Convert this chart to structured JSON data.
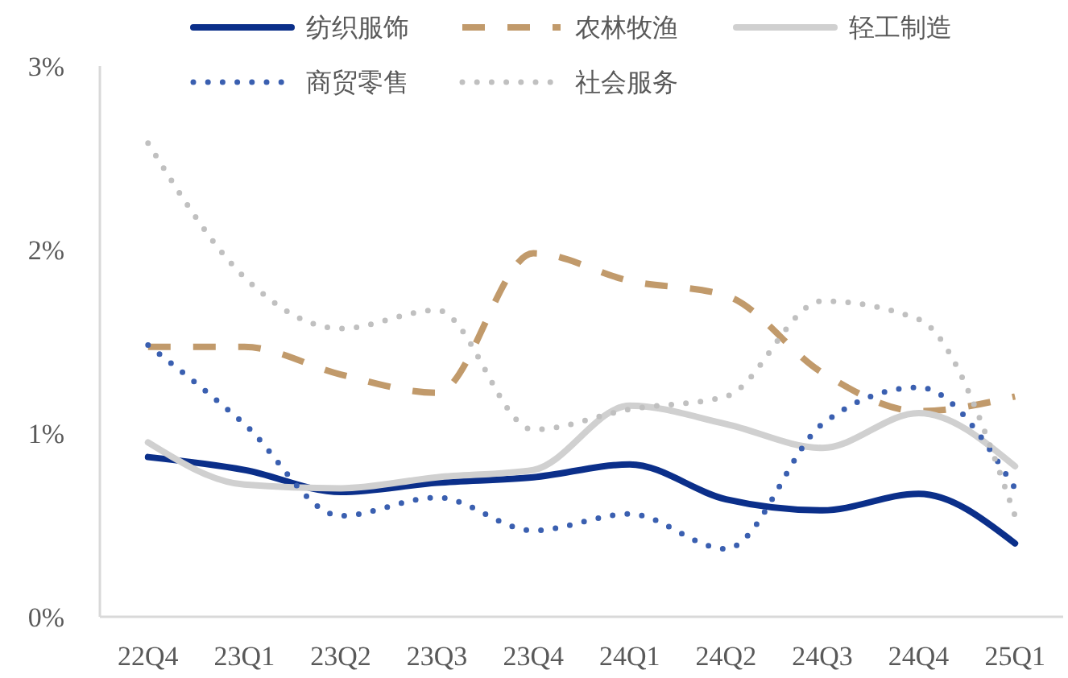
{
  "chart_data": {
    "type": "line",
    "categories": [
      "22Q4",
      "23Q1",
      "23Q2",
      "23Q3",
      "23Q4",
      "24Q1",
      "24Q2",
      "24Q3",
      "24Q4",
      "25Q1"
    ],
    "series": [
      {
        "name": "纺织服饰",
        "color": "#0b2f8a",
        "line_style": "solid",
        "values": [
          0.87,
          0.8,
          0.68,
          0.73,
          0.76,
          0.83,
          0.64,
          0.58,
          0.67,
          0.4
        ]
      },
      {
        "name": "农林牧渔",
        "color": "#c19a6b",
        "line_style": "dashed",
        "values": [
          1.47,
          1.47,
          1.32,
          1.22,
          1.98,
          1.83,
          1.75,
          1.33,
          1.12,
          1.2
        ]
      },
      {
        "name": "轻工制造",
        "color": "#d0d0d0",
        "line_style": "solid",
        "values": [
          0.95,
          0.72,
          0.7,
          0.76,
          0.8,
          1.15,
          1.05,
          0.92,
          1.11,
          0.82
        ]
      },
      {
        "name": "商贸零售",
        "color": "#3a5fb0",
        "line_style": "dotted",
        "values": [
          1.48,
          1.05,
          0.55,
          0.65,
          0.47,
          0.56,
          0.37,
          1.05,
          1.25,
          0.7
        ]
      },
      {
        "name": "社会服务",
        "color": "#c0c0c0",
        "line_style": "dotted",
        "values": [
          2.58,
          1.85,
          1.57,
          1.67,
          1.02,
          1.13,
          1.2,
          1.72,
          1.62,
          0.55
        ]
      }
    ],
    "ylim": [
      0,
      3
    ],
    "yticks": [
      {
        "value": 0,
        "label": "0%"
      },
      {
        "value": 1,
        "label": "1%"
      },
      {
        "value": 2,
        "label": "2%"
      },
      {
        "value": 3,
        "label": "3%"
      }
    ],
    "grid": false,
    "legend": "top",
    "marker": "none"
  }
}
